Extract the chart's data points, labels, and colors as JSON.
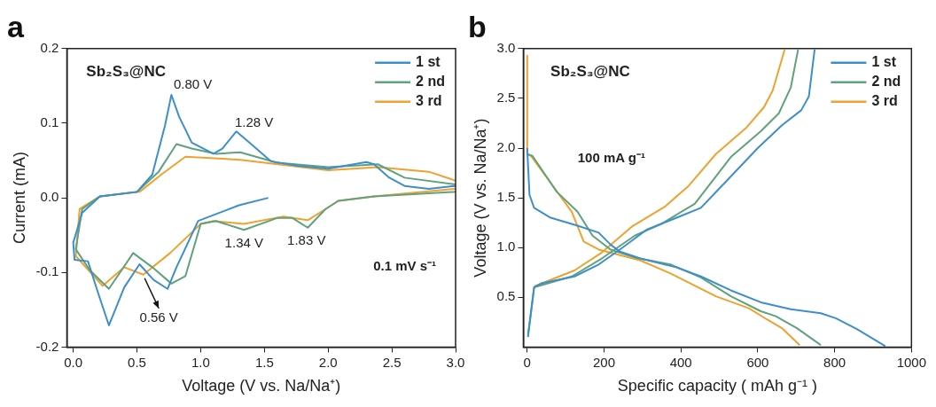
{
  "chart_data": [
    {
      "type": "line",
      "title": "a",
      "xlabel": "Voltage (V vs. Na/Na⁺)",
      "ylabel": "Current (mA)",
      "xlim": [
        -0.05,
        3.0
      ],
      "ylim": [
        -0.2,
        0.2
      ],
      "xticks": [
        {
          "value": 0,
          "label": "0.0"
        },
        0.5,
        {
          "value": 1,
          "label": "1.0"
        },
        1.5,
        {
          "value": 2,
          "label": "2.0"
        },
        2.5,
        {
          "value": 3,
          "label": "3.0"
        }
      ],
      "yticks": [
        -0.2,
        -0.1,
        {
          "value": 0,
          "label": "0.0"
        },
        0.1,
        0.2
      ],
      "grid": false,
      "legend": "top right",
      "marker": "none",
      "line_style": "solid",
      "annotations": [
        "Sb₂S₃@NC",
        "0.1 mV s⁻¹",
        {
          "text": "0.80 V",
          "x": 0.8,
          "y": 0.14
        },
        {
          "text": "1.28 V",
          "x": 1.28,
          "y": 0.089
        },
        {
          "text": "1.34 V",
          "x": 1.34,
          "y": -0.043
        },
        {
          "text": "1.83 V",
          "x": 1.83,
          "y": -0.04
        },
        {
          "text": "0.56 V",
          "x": 0.56,
          "y": -0.103
        }
      ],
      "series": [
        {
          "name": "1 st",
          "color": "#3d8fcc",
          "x": [
            1.53,
            1.3,
            0.98,
            0.81,
            0.74,
            0.63,
            0.52,
            0.4,
            0.28,
            0.2,
            0.115,
            0.01,
            0.0,
            0.07,
            0.21,
            0.5,
            0.62,
            0.72,
            0.77,
            0.83,
            0.93,
            1.1,
            1.17,
            1.28,
            1.41,
            1.55,
            1.76,
            2.0,
            2.3,
            2.36,
            2.48,
            2.6,
            2.79,
            3.0
          ],
          "values": [
            0.0,
            -0.01,
            -0.031,
            -0.093,
            -0.122,
            -0.11,
            -0.089,
            -0.12,
            -0.171,
            -0.13,
            -0.085,
            -0.083,
            -0.06,
            -0.02,
            0.002,
            0.008,
            0.031,
            0.097,
            0.138,
            0.109,
            0.074,
            0.059,
            0.066,
            0.089,
            0.07,
            0.049,
            0.043,
            0.039,
            0.048,
            0.045,
            0.027,
            0.016,
            0.012,
            0.016
          ]
        },
        {
          "name": "2 nd",
          "color": "#5fa27c",
          "x": [
            3.0,
            2.36,
            2.08,
            1.98,
            1.84,
            1.72,
            1.6,
            1.34,
            1.12,
            1.0,
            0.88,
            0.77,
            0.62,
            0.47,
            0.28,
            0.13,
            0.02,
            0.07,
            0.21,
            0.5,
            0.67,
            0.81,
            0.93,
            1.12,
            1.31,
            1.6,
            2.0,
            2.39,
            2.6,
            3.0
          ],
          "values": [
            0.008,
            0.002,
            -0.004,
            -0.015,
            -0.04,
            -0.027,
            -0.027,
            -0.043,
            -0.031,
            -0.035,
            -0.105,
            -0.115,
            -0.093,
            -0.074,
            -0.122,
            -0.097,
            -0.069,
            -0.015,
            0.002,
            0.008,
            0.035,
            0.072,
            0.066,
            0.059,
            0.061,
            0.047,
            0.041,
            0.045,
            0.027,
            0.018
          ]
        },
        {
          "name": "3 rd",
          "color": "#eea22f",
          "x": [
            3.0,
            2.36,
            2.08,
            1.98,
            1.84,
            1.65,
            1.34,
            1.1,
            1.0,
            0.76,
            0.55,
            0.4,
            0.23,
            0.02,
            0.05,
            0.21,
            0.52,
            0.69,
            0.88,
            1.31,
            2.0,
            2.39,
            2.79,
            3.0
          ],
          "values": [
            0.012,
            0.002,
            -0.004,
            -0.015,
            -0.03,
            -0.025,
            -0.035,
            -0.031,
            -0.035,
            -0.074,
            -0.103,
            -0.093,
            -0.118,
            -0.078,
            -0.015,
            0.002,
            0.008,
            0.031,
            0.055,
            0.051,
            0.037,
            0.041,
            0.035,
            0.023
          ]
        }
      ]
    },
    {
      "type": "line",
      "title": "b",
      "xlabel": "Specific capacity ( mAh g⁻¹ )",
      "ylabel": "Voltage (V vs. Na/Na⁺)",
      "xlim": [
        -10,
        1000
      ],
      "ylim": [
        0,
        3.0
      ],
      "xticks": [
        0,
        200,
        400,
        600,
        800,
        1000
      ],
      "yticks": [
        0.5,
        {
          "value": 1,
          "label": "1.0"
        },
        1.5,
        {
          "value": 2,
          "label": "2.0"
        },
        2.5,
        {
          "value": 3,
          "label": "3.0"
        }
      ],
      "grid": false,
      "legend": "top right",
      "marker": "none",
      "line_style": "solid",
      "annotations": [
        "Sb₂S₃@NC",
        "100 mA g⁻¹"
      ],
      "series": [
        {
          "name": "1 st",
          "color": "#3d8fcc",
          "x": [
            0,
            6,
            18,
            61,
            131,
            186,
            217,
            241,
            295,
            389,
            452,
            530,
            608,
            686,
            764,
            803,
            858,
            932,
            null,
            2,
            18,
            37,
            123,
            186,
            241,
            311,
            389,
            452,
            514,
            600,
            663,
            713,
            733,
            748
          ],
          "values": [
            2.0,
            1.53,
            1.4,
            1.3,
            1.22,
            1.15,
            1.03,
            0.96,
            0.89,
            0.8,
            0.71,
            0.57,
            0.45,
            0.38,
            0.34,
            0.29,
            0.18,
            0.01,
            null,
            0.1,
            0.6,
            0.64,
            0.71,
            0.83,
            0.98,
            1.18,
            1.3,
            1.4,
            1.65,
            2.0,
            2.23,
            2.38,
            2.52,
            2.99
          ]
        },
        {
          "name": "2 nd",
          "color": "#5fa27c",
          "x": [
            0,
            14,
            77,
            131,
            170,
            217,
            280,
            373,
            452,
            530,
            608,
            647,
            702,
            764,
            null,
            2,
            18,
            116,
            194,
            280,
            350,
            436,
            530,
            608,
            655,
            686,
            705
          ],
          "values": [
            1.94,
            1.92,
            1.56,
            1.36,
            1.12,
            0.98,
            0.9,
            0.83,
            0.7,
            0.51,
            0.36,
            0.31,
            0.19,
            0.02,
            null,
            0.12,
            0.6,
            0.71,
            0.89,
            1.12,
            1.24,
            1.44,
            1.91,
            2.17,
            2.35,
            2.61,
            2.99
          ]
        },
        {
          "name": "3 rd",
          "color": "#eea22f",
          "x": [
            0,
            0,
            10,
            61,
            116,
            147,
            186,
            295,
            373,
            491,
            577,
            623,
            663,
            709,
            null,
            18,
            123,
            194,
            272,
            358,
            420,
            491,
            569,
            616,
            639,
            670
          ],
          "values": [
            2.93,
            1.94,
            1.92,
            1.65,
            1.36,
            1.06,
            0.98,
            0.87,
            0.74,
            0.51,
            0.39,
            0.28,
            0.19,
            0.02,
            null,
            0.61,
            0.77,
            0.95,
            1.21,
            1.41,
            1.62,
            1.94,
            2.2,
            2.41,
            2.58,
            2.99
          ]
        }
      ]
    }
  ]
}
